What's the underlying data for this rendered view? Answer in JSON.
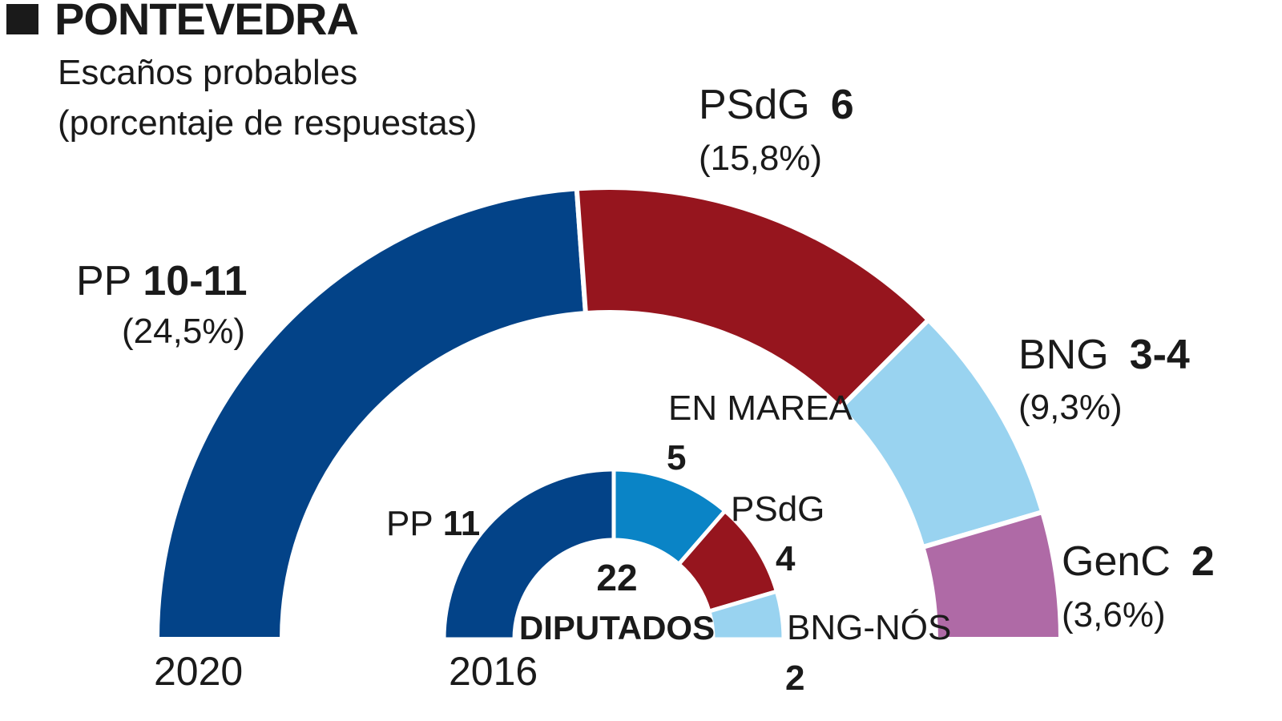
{
  "header": {
    "title": "PONTEVEDRA",
    "subtitle_line1": "Escaños probables",
    "subtitle_line2": "(porcentaje de respuestas)"
  },
  "chart_data": [
    {
      "type": "semicircle-donut",
      "label": "2020",
      "segments": [
        {
          "name": "PP",
          "seats_label": "10-11",
          "seats": 10.5,
          "percent": "(24,5%)",
          "color": "#034388"
        },
        {
          "name": "PSdG",
          "seats_label": "6",
          "seats": 6,
          "percent": "(15,8%)",
          "color": "#96151e"
        },
        {
          "name": "BNG",
          "seats_label": "3-4",
          "seats": 3.5,
          "percent": "(9,3%)",
          "color": "#99d3f0"
        },
        {
          "name": "GenC",
          "seats_label": "2",
          "seats": 2,
          "percent": "(3,6%)",
          "color": "#af6aa6"
        }
      ]
    },
    {
      "type": "semicircle-donut",
      "label": "2016",
      "total": "22",
      "total_label": "DIPUTADOS",
      "segments": [
        {
          "name": "PP",
          "seats_label": "11",
          "seats": 11,
          "color": "#034388"
        },
        {
          "name": "EN MAREA",
          "seats_label": "5",
          "seats": 5,
          "color": "#0a84c6"
        },
        {
          "name": "PSdG",
          "seats_label": "4",
          "seats": 4,
          "color": "#96151e"
        },
        {
          "name": "BNG-NÓS",
          "seats_label": "2",
          "seats": 2,
          "color": "#99d3f0"
        }
      ]
    }
  ]
}
